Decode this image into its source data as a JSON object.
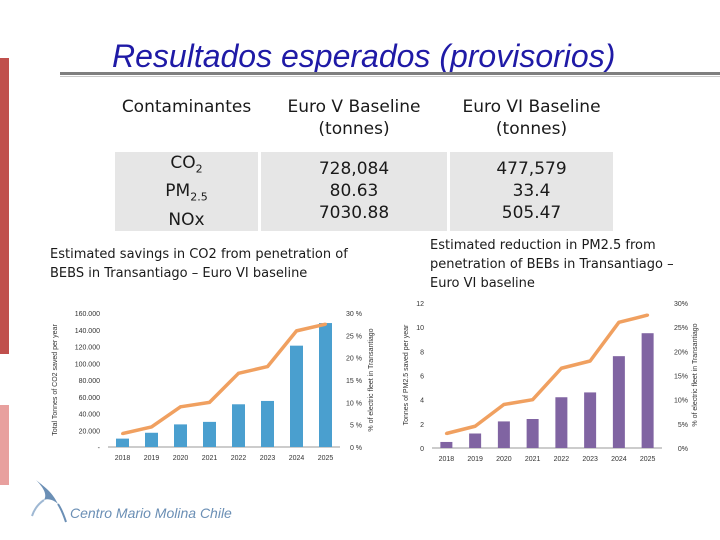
{
  "title": "Resultados esperados (provisorios)",
  "table": {
    "headers": [
      "Contaminantes",
      "Euro V Baseline (tonnes)",
      "Euro VI Baseline (tonnes)"
    ],
    "rows": [
      {
        "pollutant": "CO",
        "sub": "2",
        "euro_v": "728,084",
        "euro_vi": "477,579"
      },
      {
        "pollutant": "PM",
        "sub": "2.5",
        "euro_v": "80.63",
        "euro_vi": "33.4"
      },
      {
        "pollutant": "NOx",
        "sub": "",
        "euro_v": "7030.88",
        "euro_vi": "505.47"
      }
    ]
  },
  "captions": {
    "left": "Estimated savings in CO2 from penetration of BEBS in Transantiago – Euro VI baseline",
    "right": "Estimated reduction in PM2.5 from penetration of BEBs in Transantiago – Euro VI baseline"
  },
  "logo": "Centro Mario Molina Chile",
  "colors": {
    "title": "#1f1aa6",
    "bar_left": "#4a9fcf",
    "bar_right": "#8064a2",
    "line": "#f0a060",
    "accent": "#c0504d"
  },
  "chart_data": [
    {
      "type": "bar",
      "categories": [
        "2018",
        "2019",
        "2020",
        "2021",
        "2022",
        "2023",
        "2024",
        "2025"
      ],
      "series": [
        {
          "name": "Total Tonnes of CO2 saved per year",
          "axis": "left",
          "values": [
            10000,
            17000,
            27000,
            30000,
            51000,
            55000,
            121000,
            148000
          ]
        },
        {
          "name": "% of electric fleet in Transantiago",
          "axis": "right",
          "type": "line",
          "values": [
            0.03,
            0.045,
            0.09,
            0.1,
            0.165,
            0.18,
            0.26,
            0.275
          ]
        }
      ],
      "ylabel": "Total Tonnes of CO2 saved per year",
      "y2label": "% of electric fleet in Transantiago",
      "ylim": [
        0,
        160000
      ],
      "yticks": [
        0,
        20000,
        40000,
        60000,
        80000,
        100000,
        120000,
        140000,
        160000
      ],
      "ytick_labels": [
        "-",
        "20.000",
        "40.000",
        "60.000",
        "80.000",
        "100.000",
        "120.000",
        "140.000",
        "160.000"
      ],
      "y2lim": [
        0,
        0.3
      ],
      "y2ticks": [
        0,
        0.05,
        0.1,
        0.15,
        0.2,
        0.25,
        0.3
      ],
      "y2tick_labels": [
        "0 %",
        "5 %",
        "10 %",
        "15 %",
        "20 %",
        "25 %",
        "30 %"
      ]
    },
    {
      "type": "bar",
      "categories": [
        "2018",
        "2019",
        "2020",
        "2021",
        "2022",
        "2023",
        "2024",
        "2025"
      ],
      "series": [
        {
          "name": "Tonnes of PM2.5 saved per year",
          "axis": "left",
          "values": [
            0.5,
            1.2,
            2.2,
            2.4,
            4.2,
            4.6,
            7.6,
            9.5
          ]
        },
        {
          "name": "% of electric fleet in Transantiago",
          "axis": "right",
          "type": "line",
          "values": [
            0.03,
            0.045,
            0.09,
            0.1,
            0.165,
            0.18,
            0.26,
            0.275
          ]
        }
      ],
      "ylabel": "Tonnes of PM2.5 saved per year",
      "y2label": "% of electric fleet in Transantiago",
      "ylim": [
        0,
        12
      ],
      "yticks": [
        0,
        2,
        4,
        6,
        8,
        10,
        12
      ],
      "ytick_labels": [
        "0",
        "2",
        "4",
        "6",
        "8",
        "10",
        "12"
      ],
      "y2lim": [
        0,
        0.3
      ],
      "y2ticks": [
        0,
        0.05,
        0.1,
        0.15,
        0.2,
        0.25,
        0.3
      ],
      "y2tick_labels": [
        "0%",
        "5%",
        "10%",
        "15%",
        "20%",
        "25%",
        "30%"
      ]
    }
  ]
}
